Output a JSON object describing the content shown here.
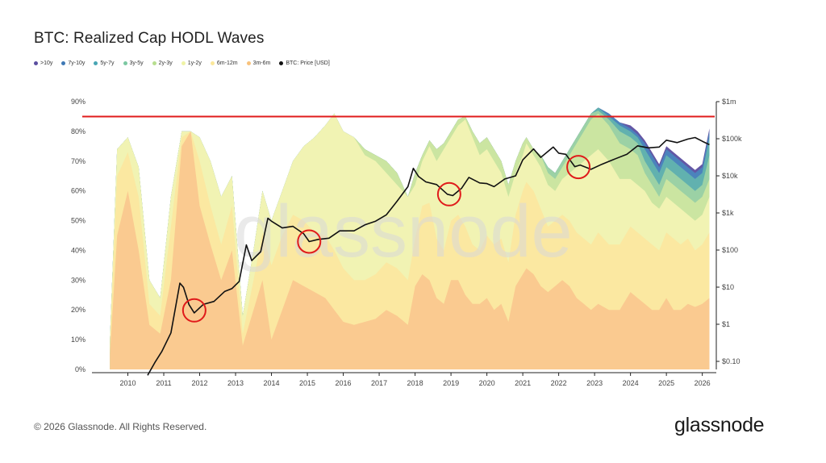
{
  "page": {
    "title": "BTC: Realized Cap HODL Waves",
    "copyright": "© 2026 Glassnode. All Rights Reserved.",
    "brand": "glassnode",
    "watermark": "glassnode"
  },
  "legend": [
    {
      "label": ">10y",
      "color": "#5b4ea0"
    },
    {
      "label": "7y-10y",
      "color": "#3f79b5"
    },
    {
      "label": "5y-7y",
      "color": "#48a6b4"
    },
    {
      "label": "3y-5y",
      "color": "#7cc8a2"
    },
    {
      "label": "2y-3y",
      "color": "#b7de8f"
    },
    {
      "label": "1y-2y",
      "color": "#eff3a6"
    },
    {
      "label": "6m-12m",
      "color": "#fbe79a"
    },
    {
      "label": "3m-6m",
      "color": "#f8c27c"
    },
    {
      "label": "BTC: Price [USD]",
      "color": "#111111"
    }
  ],
  "chart_data": {
    "type": "area",
    "x_ticks": [
      "2010",
      "2011",
      "2012",
      "2013",
      "2014",
      "2015",
      "2016",
      "2017",
      "2018",
      "2019",
      "2020",
      "2021",
      "2022",
      "2023",
      "2024",
      "2025",
      "2026"
    ],
    "y_ticks": [
      "0%",
      "10%",
      "20%",
      "30%",
      "40%",
      "50%",
      "60%",
      "70%",
      "80%",
      "90%"
    ],
    "y2_ticks": [
      "$0.10",
      "$1",
      "$10",
      "$100",
      "$1k",
      "$10k",
      "$100k",
      "$1m"
    ],
    "ylim": [
      0,
      90
    ],
    "y2_log_range": [
      0.1,
      1000000
    ],
    "xlim": [
      2009.0,
      2026.3
    ],
    "reference_line": {
      "y": 85,
      "color": "#e01b1b"
    },
    "highlight_circles": [
      {
        "x": 2011.85,
        "price": 3.5
      },
      {
        "x": 2015.05,
        "price": 220
      },
      {
        "x": 2018.95,
        "price": 3800
      },
      {
        "x": 2022.55,
        "price": 19500
      }
    ],
    "band_colors": [
      "#fac88f",
      "#fbe7a0",
      "#f2f3b4",
      "#cde6a0",
      "#9ed3a4",
      "#62b3ae",
      "#4a86bd",
      "#5b4ea0"
    ],
    "cumulative_series": {
      "x": [
        2009.5,
        2009.7,
        2010.0,
        2010.3,
        2010.6,
        2010.9,
        2011.2,
        2011.5,
        2011.75,
        2012.0,
        2012.3,
        2012.6,
        2012.9,
        2013.2,
        2013.5,
        2013.75,
        2014.0,
        2014.3,
        2014.6,
        2014.9,
        2015.2,
        2015.5,
        2015.75,
        2016.0,
        2016.3,
        2016.6,
        2016.9,
        2017.2,
        2017.5,
        2017.8,
        2018.0,
        2018.2,
        2018.4,
        2018.6,
        2018.8,
        2019.0,
        2019.2,
        2019.4,
        2019.6,
        2019.8,
        2020.0,
        2020.2,
        2020.4,
        2020.6,
        2020.8,
        2021.0,
        2021.1,
        2021.3,
        2021.5,
        2021.7,
        2021.9,
        2022.1,
        2022.3,
        2022.5,
        2022.7,
        2022.9,
        2023.1,
        2023.4,
        2023.7,
        2024.0,
        2024.2,
        2024.4,
        2024.6,
        2024.8,
        2025.0,
        2025.2,
        2025.4,
        2025.6,
        2025.8,
        2026.0,
        2026.2
      ],
      "s1": [
        5,
        45,
        60,
        40,
        15,
        12,
        30,
        75,
        80,
        55,
        42,
        30,
        40,
        8,
        20,
        30,
        10,
        20,
        30,
        28,
        26,
        24,
        20,
        16,
        15,
        16,
        17,
        20,
        18,
        15,
        28,
        32,
        30,
        24,
        22,
        30,
        30,
        25,
        22,
        22,
        24,
        20,
        22,
        16,
        28,
        32,
        34,
        32,
        28,
        26,
        28,
        30,
        28,
        24,
        22,
        20,
        22,
        20,
        20,
        26,
        24,
        22,
        20,
        20,
        24,
        20,
        20,
        22,
        21,
        22,
        24
      ],
      "s2": [
        8,
        65,
        73,
        58,
        22,
        18,
        48,
        78,
        80,
        70,
        55,
        42,
        55,
        12,
        30,
        46,
        35,
        45,
        52,
        50,
        46,
        45,
        40,
        34,
        30,
        30,
        32,
        36,
        34,
        30,
        44,
        55,
        56,
        44,
        40,
        50,
        52,
        48,
        42,
        40,
        45,
        42,
        44,
        36,
        52,
        60,
        63,
        60,
        54,
        48,
        50,
        52,
        50,
        46,
        44,
        42,
        46,
        42,
        42,
        48,
        46,
        44,
        42,
        40,
        46,
        44,
        42,
        44,
        40,
        42,
        46
      ],
      "s3": [
        10,
        74,
        78,
        68,
        30,
        24,
        58,
        80,
        80,
        78,
        70,
        58,
        65,
        18,
        40,
        60,
        50,
        60,
        70,
        75,
        78,
        82,
        86,
        80,
        78,
        72,
        70,
        66,
        62,
        58,
        62,
        70,
        75,
        70,
        74,
        78,
        82,
        84,
        78,
        72,
        74,
        70,
        66,
        58,
        66,
        72,
        76,
        72,
        68,
        62,
        60,
        64,
        66,
        68,
        70,
        72,
        74,
        70,
        64,
        64,
        62,
        60,
        56,
        54,
        58,
        56,
        54,
        52,
        50,
        52,
        58
      ],
      "s4": [
        10,
        74,
        78,
        68,
        30,
        24,
        58,
        80,
        80,
        78,
        70,
        58,
        65,
        18,
        40,
        60,
        50,
        60,
        70,
        75,
        78,
        82,
        86,
        80,
        78,
        74,
        72,
        70,
        66,
        58,
        66,
        72,
        77,
        74,
        76,
        80,
        84,
        85,
        80,
        76,
        78,
        74,
        70,
        62,
        70,
        76,
        78,
        74,
        72,
        66,
        64,
        68,
        72,
        76,
        80,
        84,
        86,
        82,
        76,
        74,
        72,
        66,
        62,
        58,
        64,
        62,
        60,
        58,
        56,
        58,
        64
      ],
      "s5": [
        10,
        74,
        78,
        68,
        30,
        24,
        58,
        80,
        80,
        78,
        70,
        58,
        65,
        18,
        40,
        60,
        50,
        60,
        70,
        75,
        78,
        82,
        86,
        80,
        78,
        74,
        72,
        70,
        66,
        58,
        66,
        72,
        77,
        74,
        76,
        80,
        84,
        85,
        80,
        76,
        78,
        74,
        70,
        62,
        70,
        76,
        78,
        74,
        72,
        68,
        66,
        70,
        74,
        78,
        82,
        86,
        87,
        84,
        80,
        78,
        76,
        70,
        66,
        62,
        68,
        66,
        64,
        62,
        60,
        62,
        72
      ],
      "s6": [
        10,
        74,
        78,
        68,
        30,
        24,
        58,
        80,
        80,
        78,
        70,
        58,
        65,
        18,
        40,
        60,
        50,
        60,
        70,
        75,
        78,
        82,
        86,
        80,
        78,
        74,
        72,
        70,
        66,
        58,
        66,
        72,
        77,
        74,
        76,
        80,
        84,
        85,
        80,
        76,
        78,
        74,
        70,
        62,
        70,
        76,
        78,
        74,
        72,
        68,
        66,
        70,
        74,
        78,
        82,
        86,
        88,
        85,
        82,
        80,
        78,
        74,
        70,
        66,
        72,
        70,
        68,
        66,
        64,
        66,
        78
      ],
      "s7": [
        10,
        74,
        78,
        68,
        30,
        24,
        58,
        80,
        80,
        78,
        70,
        58,
        65,
        18,
        40,
        60,
        50,
        60,
        70,
        75,
        78,
        82,
        86,
        80,
        78,
        74,
        72,
        70,
        66,
        58,
        66,
        72,
        77,
        74,
        76,
        80,
        84,
        85,
        80,
        76,
        78,
        74,
        70,
        62,
        70,
        76,
        78,
        74,
        72,
        68,
        66,
        70,
        74,
        78,
        82,
        86,
        88,
        86,
        83,
        81,
        79,
        76,
        72,
        68,
        74,
        72,
        70,
        68,
        66,
        68,
        80
      ],
      "s8": [
        10,
        74,
        78,
        68,
        30,
        24,
        58,
        80,
        80,
        78,
        70,
        58,
        65,
        18,
        40,
        60,
        50,
        60,
        70,
        75,
        78,
        82,
        86,
        80,
        78,
        74,
        72,
        70,
        66,
        58,
        66,
        72,
        77,
        74,
        76,
        80,
        84,
        85,
        80,
        76,
        78,
        74,
        70,
        62,
        70,
        76,
        78,
        74,
        72,
        68,
        66,
        70,
        74,
        78,
        82,
        86,
        88,
        86,
        83,
        82,
        80,
        77,
        73,
        69,
        75,
        73,
        71,
        69,
        67,
        69,
        81
      ]
    },
    "price_series": {
      "x": [
        2010.55,
        2010.75,
        2010.95,
        2011.2,
        2011.45,
        2011.55,
        2011.7,
        2011.85,
        2012.1,
        2012.4,
        2012.7,
        2012.9,
        2013.1,
        2013.3,
        2013.45,
        2013.7,
        2013.9,
        2014.0,
        2014.3,
        2014.6,
        2014.9,
        2015.05,
        2015.3,
        2015.6,
        2015.9,
        2016.3,
        2016.6,
        2016.9,
        2017.2,
        2017.5,
        2017.8,
        2017.95,
        2018.1,
        2018.3,
        2018.6,
        2018.9,
        2019.05,
        2019.3,
        2019.5,
        2019.8,
        2020.0,
        2020.2,
        2020.5,
        2020.8,
        2021.0,
        2021.3,
        2021.5,
        2021.85,
        2022.0,
        2022.2,
        2022.45,
        2022.6,
        2022.9,
        2023.2,
        2023.5,
        2023.9,
        2024.2,
        2024.5,
        2024.8,
        2025.0,
        2025.3,
        2025.6,
        2025.8,
        2026.0,
        2026.2
      ],
      "price": [
        0.07,
        0.15,
        0.3,
        0.9,
        18,
        14,
        5,
        3,
        5,
        6,
        11,
        13,
        20,
        180,
        70,
        120,
        900,
        750,
        500,
        550,
        350,
        220,
        250,
        270,
        420,
        420,
        600,
        750,
        1100,
        2500,
        6000,
        18000,
        11000,
        8000,
        6800,
        3800,
        3500,
        5500,
        10500,
        7500,
        7200,
        6000,
        9500,
        11500,
        30000,
        58000,
        35000,
        65000,
        45000,
        42000,
        20000,
        22000,
        17000,
        23000,
        30000,
        42000,
        70000,
        62000,
        65000,
        98000,
        85000,
        105000,
        115000,
        92000,
        75000
      ]
    }
  }
}
